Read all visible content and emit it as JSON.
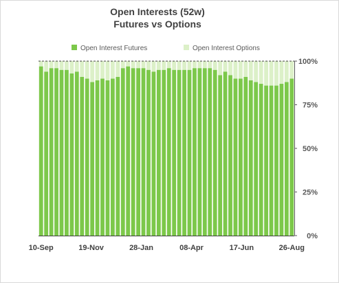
{
  "chart_data": {
    "type": "bar",
    "stacked": "percent",
    "title": "Open Interests (52w)",
    "subtitle": "Futures vs Options",
    "legend": {
      "position": "top",
      "entries": [
        "Open Interest  Futures",
        "Open Interest  Options"
      ]
    },
    "series": [
      {
        "name": "Open Interest  Futures",
        "color": "#7cc84a",
        "values": [
          97,
          94,
          96,
          96,
          95,
          95,
          93,
          94,
          91,
          90,
          88,
          89,
          90,
          89,
          90,
          91,
          96,
          97,
          96,
          96,
          96,
          95,
          94,
          95,
          95,
          96,
          95,
          95,
          95,
          95,
          96,
          96,
          96,
          96,
          95,
          92,
          94,
          92,
          90,
          90,
          91,
          89,
          88,
          87,
          86,
          86,
          86,
          87,
          88,
          90
        ]
      },
      {
        "name": "Open Interest  Options",
        "color": "#dcf0c8",
        "values": [
          3,
          6,
          4,
          4,
          5,
          5,
          7,
          6,
          9,
          10,
          12,
          11,
          10,
          11,
          10,
          9,
          4,
          3,
          4,
          4,
          4,
          5,
          6,
          5,
          5,
          4,
          5,
          5,
          5,
          5,
          4,
          4,
          4,
          4,
          5,
          8,
          6,
          8,
          10,
          10,
          9,
          11,
          12,
          13,
          14,
          14,
          14,
          13,
          12,
          10
        ]
      }
    ],
    "x_tick_labels": [
      "10-Sep",
      "19-Nov",
      "28-Jan",
      "08-Apr",
      "17-Jun",
      "26-Aug"
    ],
    "y_ticks": [
      "0%",
      "25%",
      "50%",
      "75%",
      "100%"
    ],
    "ylim": [
      0,
      100
    ],
    "grid": false
  }
}
